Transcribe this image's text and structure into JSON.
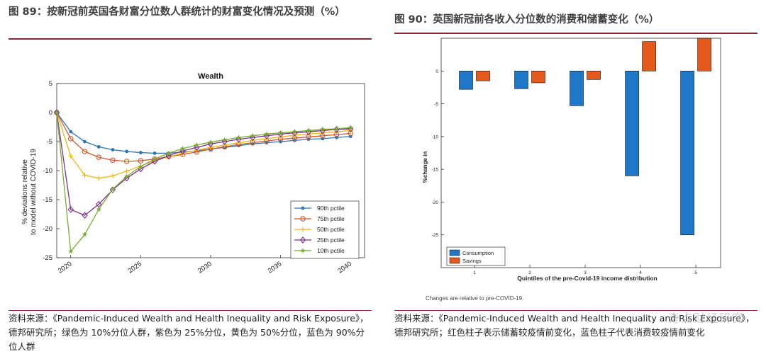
{
  "left": {
    "title": "图 89：按新冠前英国各财富分位数人群统计的财富变化情况及预测（%）",
    "source": "资料来源：《Pandemic-Induced Wealth and Health Inequality and Risk Exposure》，德邦研究所；绿色为 10%分位人群，紫色为 25%分位，黄色为 50%分位，蓝色为 90%分位人群"
  },
  "right": {
    "title": "图 90：英国新冠前各收入分位数的消费和储蓄变化（%）",
    "source": "资料来源：《Pandemic-Induced Wealth and Health Inequality and Risk Exposure》，德邦研究所；红色柱子表示储蓄较疫情前变化，蓝色柱子代表消费较疫情前变化",
    "watermark": "奇点财经研究"
  },
  "chart_data": [
    {
      "type": "line",
      "title": "Wealth",
      "xlabel": "",
      "ylabel": "% deviations relative to model without COVID-19",
      "ylabel_lines": [
        "% deviations relative",
        "to model without COVID-19"
      ],
      "x": [
        2019,
        2020,
        2021,
        2022,
        2023,
        2024,
        2025,
        2026,
        2027,
        2028,
        2029,
        2030,
        2031,
        2032,
        2033,
        2034,
        2035,
        2036,
        2037,
        2038,
        2039,
        2040
      ],
      "xlim": [
        2019,
        2041
      ],
      "ylim": [
        -25,
        5
      ],
      "xticks": [
        2020,
        2025,
        2030,
        2035,
        2040
      ],
      "yticks": [
        5,
        0,
        -5,
        -10,
        -15,
        -20,
        -25
      ],
      "legend_position": "bottom-right",
      "series": [
        {
          "name": "90th pctile",
          "color": "#2e75b6",
          "marker": "dot",
          "values": [
            0,
            -3.3,
            -5.0,
            -5.9,
            -6.4,
            -6.7,
            -6.9,
            -7.0,
            -7.0,
            -6.8,
            -6.6,
            -6.3,
            -6.0,
            -5.7,
            -5.4,
            -5.2,
            -5.0,
            -4.8,
            -4.6,
            -4.5,
            -4.3,
            -4.1
          ]
        },
        {
          "name": "75th pctile",
          "color": "#d0582b",
          "marker": "circle",
          "values": [
            0,
            -4.5,
            -6.7,
            -7.7,
            -8.2,
            -8.4,
            -8.3,
            -8.0,
            -7.6,
            -7.2,
            -6.8,
            -6.3,
            -5.9,
            -5.5,
            -5.2,
            -4.9,
            -4.6,
            -4.4,
            -4.2,
            -4.0,
            -3.8,
            -3.6
          ]
        },
        {
          "name": "50th pctile",
          "color": "#f0b419",
          "marker": "plus",
          "values": [
            0,
            -7.5,
            -10.8,
            -11.3,
            -10.9,
            -10.1,
            -9.2,
            -8.3,
            -7.6,
            -7.0,
            -6.5,
            -6.0,
            -5.6,
            -5.2,
            -4.8,
            -4.5,
            -4.2,
            -3.9,
            -3.7,
            -3.5,
            -3.3,
            -3.1
          ]
        },
        {
          "name": "25th pctile",
          "color": "#7e2f8e",
          "marker": "diamond",
          "values": [
            0,
            -16.7,
            -17.7,
            -15.8,
            -13.3,
            -11.3,
            -9.7,
            -8.4,
            -7.4,
            -6.6,
            -6.0,
            -5.4,
            -5.0,
            -4.6,
            -4.3,
            -4.0,
            -3.7,
            -3.5,
            -3.3,
            -3.1,
            -2.9,
            -2.8
          ]
        },
        {
          "name": "10th pctile",
          "color": "#77ac30",
          "marker": "star",
          "values": [
            0,
            -23.9,
            -21.0,
            -16.7,
            -13.2,
            -11.0,
            -9.3,
            -8.0,
            -7.0,
            -6.2,
            -5.6,
            -5.1,
            -4.7,
            -4.3,
            -4.0,
            -3.7,
            -3.5,
            -3.3,
            -3.1,
            -2.9,
            -2.8,
            -2.6
          ]
        }
      ]
    },
    {
      "type": "bar",
      "title": "",
      "xlabel": "Quintiles of the pre-Covid-19 income distribution",
      "ylabel": "%change in",
      "categories": [
        "1",
        "2",
        "3",
        "4",
        "5"
      ],
      "ylim": [
        -30,
        5
      ],
      "yticks": [
        0,
        -5,
        -10,
        -15,
        -20,
        -25
      ],
      "legend_position": "bottom-left",
      "series": [
        {
          "name": "Consumption",
          "color": "#1f77c8",
          "values": [
            -2.8,
            -2.7,
            -5.3,
            -16.0,
            -25.0
          ]
        },
        {
          "name": "Savings",
          "color": "#e35a1c",
          "values": [
            -1.5,
            -1.8,
            -1.3,
            4.5,
            5.0
          ]
        }
      ],
      "note": "Changes are relative to pre-COVID-19."
    }
  ]
}
